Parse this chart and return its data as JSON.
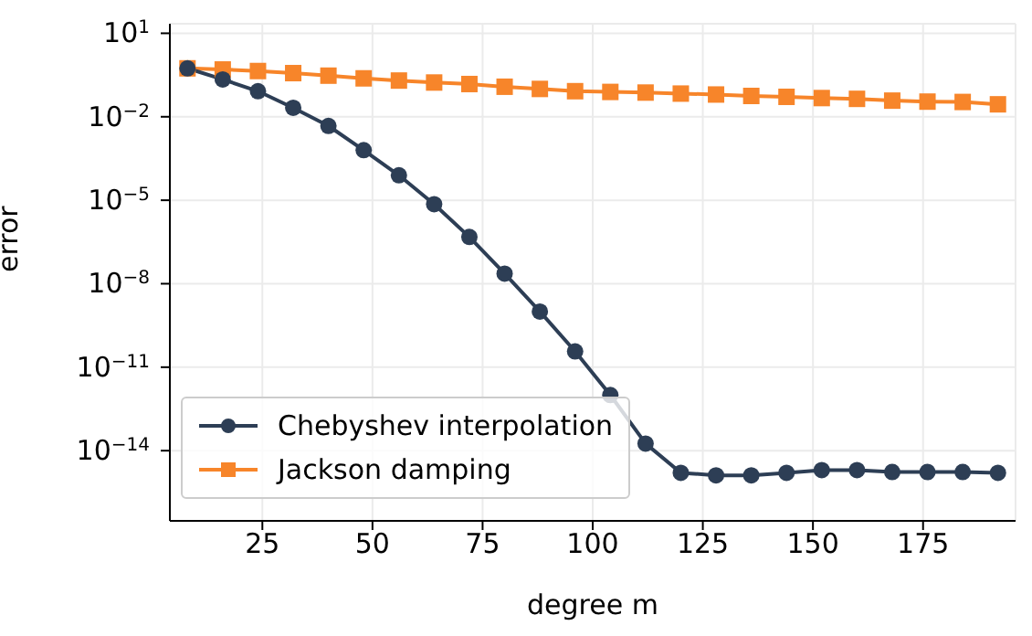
{
  "chart_data": {
    "type": "line",
    "xlabel": "degree m",
    "ylabel": "error",
    "log": "y",
    "grid": true,
    "legend": "bottom left",
    "xlim": [
      4,
      196
    ],
    "xticks": [
      25,
      50,
      75,
      100,
      125,
      150,
      175
    ],
    "ylim": [
      3e-17,
      22
    ],
    "yticks": [
      {
        "value": 10,
        "label": "10$^{1}$"
      },
      {
        "value": 0.01,
        "label": "10$^{−2}$"
      },
      {
        "value": 1e-05,
        "label": "10$^{−5}$"
      },
      {
        "value": 1e-08,
        "label": "10$^{−8}$"
      },
      {
        "value": 1e-11,
        "label": "10$^{−11}$"
      },
      {
        "value": 1e-14,
        "label": "10$^{−14}$"
      }
    ],
    "x": [
      8,
      16,
      24,
      32,
      40,
      48,
      56,
      64,
      72,
      80,
      88,
      96,
      104,
      112,
      120,
      128,
      136,
      144,
      152,
      160,
      168,
      176,
      184,
      192
    ],
    "series": [
      {
        "name": "Chebyshev interpolation",
        "color": "#2d3e55",
        "marker": "circle",
        "values": [
          0.55,
          0.22,
          0.083,
          0.021,
          0.0047,
          0.00063,
          7.9e-05,
          7.2e-06,
          4.8e-07,
          2.3e-08,
          1e-09,
          3.7e-11,
          1e-12,
          1.8e-14,
          1.6e-15,
          1.3e-15,
          1.3e-15,
          1.6e-15,
          2e-15,
          2e-15,
          1.7e-15,
          1.7e-15,
          1.7e-15,
          1.6e-15
        ]
      },
      {
        "name": "Jackson damping",
        "color": "#f7852a",
        "marker": "square",
        "values": [
          0.55,
          0.5,
          0.44,
          0.37,
          0.3,
          0.24,
          0.2,
          0.17,
          0.15,
          0.12,
          0.1,
          0.083,
          0.078,
          0.074,
          0.068,
          0.063,
          0.056,
          0.052,
          0.047,
          0.044,
          0.038,
          0.035,
          0.034,
          0.028
        ]
      }
    ]
  }
}
